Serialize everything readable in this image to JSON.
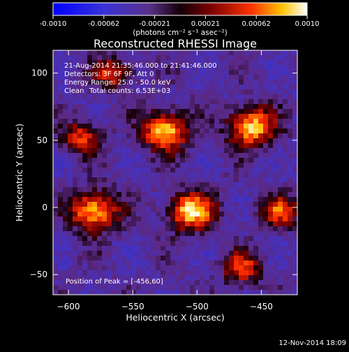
{
  "colorbar": {
    "ticks": [
      "-0.0010",
      "-0.00062",
      "-0.00021",
      "0.00021",
      "0.00062",
      "0.0010"
    ],
    "units_label": "(photons cm⁻² s⁻¹ asec⁻²)"
  },
  "chart_data": {
    "type": "heatmap",
    "title": "Reconstructed RHESSI Image",
    "xlabel": "Heliocentric X (arcsec)",
    "ylabel": "Heliocentric Y (arcsec)",
    "xlim": [
      -612,
      -422
    ],
    "ylim": [
      -65,
      117
    ],
    "xticks": [
      -600,
      -550,
      -500,
      -450
    ],
    "yticks": [
      -50,
      0,
      50,
      100
    ],
    "colorscale": {
      "min": -0.001,
      "max": 0.001
    },
    "annotations": {
      "time_range": "21-Aug-2014 21:35:46.000 to 21:41:46.000",
      "detectors": "Detectors: 3F 6F 9F, Att 0",
      "energy_range": "Energy Range: 25.0 - 50.0 keV",
      "method": "Clean",
      "total_counts": "Total counts: 6.53E+03",
      "peak": "Position of Peak = [-456,60]"
    },
    "sources": [
      {
        "x": -525,
        "y": 57
      },
      {
        "x": -458,
        "y": 60
      },
      {
        "x": -505,
        "y": -3
      },
      {
        "x": -580,
        "y": -3
      },
      {
        "x": -590,
        "y": 52
      },
      {
        "x": -435,
        "y": -3
      },
      {
        "x": -565,
        "y": 100
      },
      {
        "x": -465,
        "y": -45
      }
    ]
  },
  "footer": {
    "timestamp": "12-Nov-2014 18:09"
  }
}
